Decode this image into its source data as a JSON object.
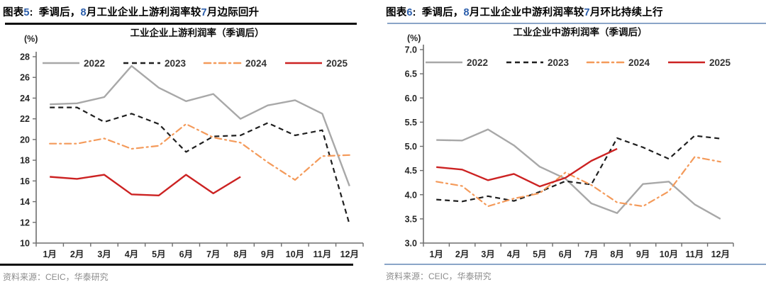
{
  "page": {
    "background": "#ffffff"
  },
  "charts": [
    {
      "figure_label": "图表5:",
      "figure_headline": "季调后，8月工业企业上游利润率较7月边际回升",
      "source": "资料来源：CEIC，华泰研究",
      "accent_rule_color": "#0d0d0d",
      "chart_data": {
        "type": "line",
        "title": "工业企业上游利润率（季调后）",
        "ylabel": "(%)",
        "categories": [
          "1月",
          "2月",
          "3月",
          "4月",
          "5月",
          "6月",
          "7月",
          "8月",
          "9月",
          "10月",
          "11月",
          "12月"
        ],
        "ylim": [
          10,
          28
        ],
        "ytick_step": 2,
        "y_decimals": 0,
        "grid": false,
        "legend_position": "top",
        "series": [
          {
            "name": "2022",
            "color": "#a8a8a8",
            "style": "solid",
            "values": [
              23.4,
              23.5,
              24.1,
              27.1,
              25.0,
              23.7,
              24.4,
              22.0,
              23.3,
              23.8,
              22.5,
              15.5
            ]
          },
          {
            "name": "2023",
            "color": "#1f1f1f",
            "style": "dashed",
            "values": [
              23.1,
              23.1,
              21.7,
              22.5,
              21.5,
              18.8,
              20.3,
              20.4,
              21.6,
              20.4,
              20.9,
              11.8
            ]
          },
          {
            "name": "2024",
            "color": "#f49a5a",
            "style": "dashdot",
            "values": [
              19.6,
              19.6,
              20.1,
              19.1,
              19.4,
              21.5,
              20.2,
              19.7,
              17.8,
              16.1,
              18.4,
              18.5
            ]
          },
          {
            "name": "2025",
            "color": "#cc2222",
            "style": "solid",
            "values": [
              16.4,
              16.2,
              16.6,
              14.7,
              14.6,
              16.6,
              14.8,
              16.4
            ]
          }
        ]
      }
    },
    {
      "figure_label": "图表6:",
      "figure_headline": "季调后，8月工业企业中游利润率较7月环比持续上行",
      "source": "资料来源：CEIC，华泰研究",
      "accent_rule_color": "#8aa5c8",
      "chart_data": {
        "type": "line",
        "title": "工业企业中游利润率（季调后）",
        "ylabel": "(%)",
        "categories": [
          "1月",
          "2月",
          "3月",
          "4月",
          "5月",
          "6月",
          "7月",
          "8月",
          "9月",
          "10月",
          "11月",
          "12月"
        ],
        "ylim": [
          3.0,
          7.0
        ],
        "ytick_step": 0.5,
        "y_decimals": 1,
        "grid": false,
        "legend_position": "top",
        "series": [
          {
            "name": "2022",
            "color": "#a8a8a8",
            "style": "solid",
            "values": [
              5.13,
              5.12,
              5.35,
              5.02,
              4.58,
              4.33,
              3.82,
              3.62,
              4.22,
              4.27,
              3.8,
              3.5
            ]
          },
          {
            "name": "2023",
            "color": "#1f1f1f",
            "style": "dashed",
            "values": [
              3.9,
              3.86,
              3.97,
              3.87,
              4.06,
              4.28,
              4.21,
              5.17,
              4.98,
              4.74,
              5.22,
              5.16
            ]
          },
          {
            "name": "2024",
            "color": "#f49a5a",
            "style": "dashdot",
            "values": [
              4.27,
              4.18,
              3.76,
              3.92,
              4.03,
              4.46,
              4.2,
              3.84,
              3.76,
              4.07,
              4.78,
              4.68
            ]
          },
          {
            "name": "2025",
            "color": "#cc2222",
            "style": "solid",
            "values": [
              4.57,
              4.52,
              4.3,
              4.43,
              4.17,
              4.35,
              4.7,
              4.95
            ]
          }
        ]
      }
    }
  ]
}
